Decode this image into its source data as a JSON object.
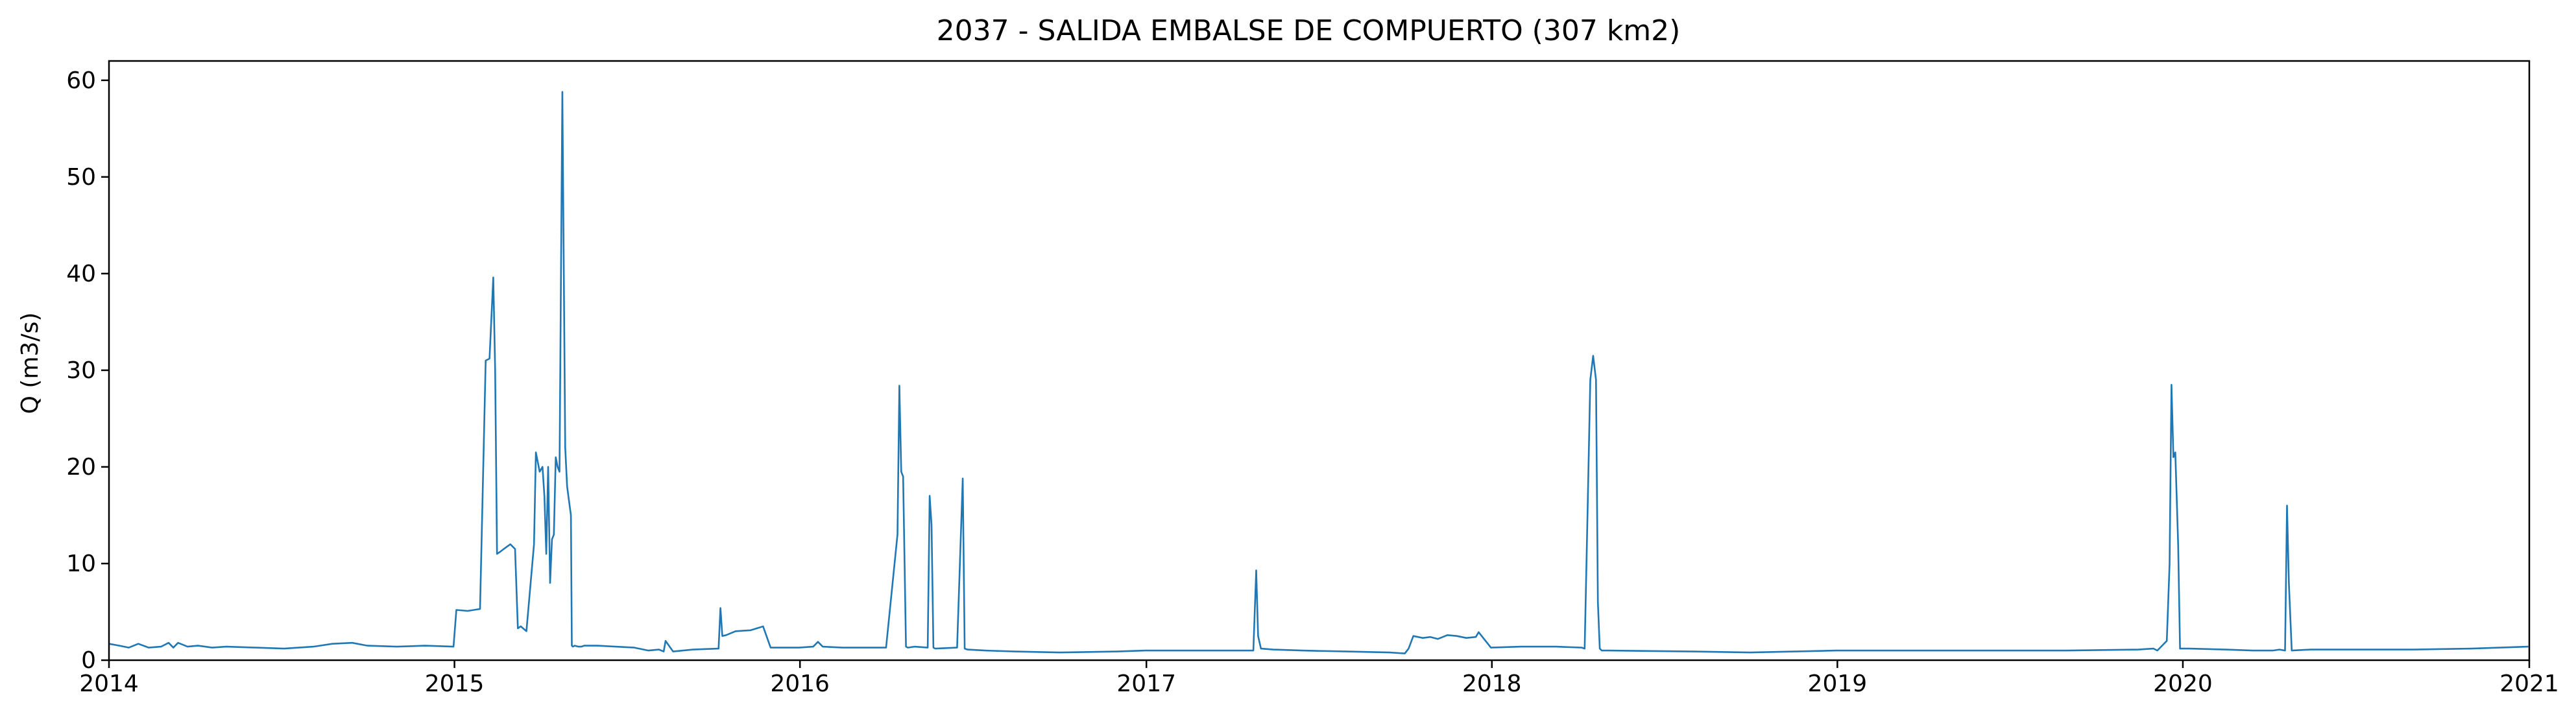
{
  "chart_data": {
    "type": "line",
    "title": "2037 - SALIDA EMBALSE DE COMPUERTO (307 km2)",
    "xlabel": "",
    "ylabel": "Q (m3/s)",
    "xlim": [
      "2014-01-01",
      "2021-01-01"
    ],
    "ylim": [
      0,
      62
    ],
    "x_ticks": [
      "2014",
      "2015",
      "2016",
      "2017",
      "2018",
      "2019",
      "2020",
      "2021"
    ],
    "y_ticks": [
      0,
      10,
      20,
      30,
      40,
      50,
      60
    ],
    "grid": false,
    "legend": "none",
    "line_color": "#1f77b4",
    "series": [
      {
        "x": [
          "2014-01-01",
          "2014-01-12",
          "2014-01-22",
          "2014-02-01",
          "2014-02-12",
          "2014-02-25",
          "2014-03-05",
          "2014-03-10",
          "2014-03-15",
          "2014-03-25",
          "2014-04-05",
          "2014-04-20",
          "2014-05-05",
          "2014-06-05",
          "2014-07-05",
          "2014-08-05",
          "2014-08-25",
          "2014-09-15",
          "2014-10-01",
          "2014-11-01",
          "2014-12-01",
          "2014-12-31",
          "2015-01-03",
          "2015-01-15",
          "2015-01-28",
          "2015-02-03",
          "2015-02-07",
          "2015-02-11",
          "2015-02-13",
          "2015-02-15",
          "2015-02-18",
          "2015-02-22",
          "2015-03-01",
          "2015-03-06",
          "2015-03-09",
          "2015-03-12",
          "2015-03-18",
          "2015-03-26",
          "2015-03-28",
          "2015-04-01",
          "2015-04-04",
          "2015-04-06",
          "2015-04-08",
          "2015-04-10",
          "2015-04-12",
          "2015-04-14",
          "2015-04-16",
          "2015-04-18",
          "2015-04-20",
          "2015-04-22",
          "2015-04-25",
          "2015-04-28",
          "2015-04-30",
          "2015-05-02",
          "2015-05-04",
          "2015-05-05",
          "2015-05-06",
          "2015-05-08",
          "2015-05-12",
          "2015-05-15",
          "2015-05-18",
          "2015-06-01",
          "2015-06-20",
          "2015-07-10",
          "2015-07-25",
          "2015-08-05",
          "2015-08-10",
          "2015-08-12",
          "2015-08-20",
          "2015-09-10",
          "2015-10-07",
          "2015-10-09",
          "2015-10-11",
          "2015-10-15",
          "2015-10-25",
          "2015-11-10",
          "2015-11-20",
          "2015-11-23",
          "2015-12-01",
          "2015-12-31",
          "2016-01-15",
          "2016-01-20",
          "2016-01-25",
          "2016-02-15",
          "2016-03-10",
          "2016-04-01",
          "2016-04-13",
          "2016-04-15",
          "2016-04-17",
          "2016-04-19",
          "2016-04-22",
          "2016-04-24",
          "2016-05-01",
          "2016-05-15",
          "2016-05-17",
          "2016-05-19",
          "2016-05-21",
          "2016-05-23",
          "2016-06-15",
          "2016-06-21",
          "2016-06-23",
          "2016-06-26",
          "2016-07-15",
          "2016-08-15",
          "2016-10-01",
          "2016-12-01",
          "2016-12-31",
          "2017-02-15",
          "2017-04-01",
          "2017-04-24",
          "2017-04-27",
          "2017-04-29",
          "2017-05-02",
          "2017-05-15",
          "2017-06-15",
          "2017-08-01",
          "2017-09-15",
          "2017-10-01",
          "2017-10-05",
          "2017-10-10",
          "2017-10-20",
          "2017-10-28",
          "2017-11-05",
          "2017-11-15",
          "2017-11-25",
          "2017-12-05",
          "2017-12-15",
          "2017-12-18",
          "2017-12-31",
          "2018-02-01",
          "2018-03-10",
          "2018-04-06",
          "2018-04-09",
          "2018-04-12",
          "2018-04-15",
          "2018-04-18",
          "2018-04-21",
          "2018-04-23",
          "2018-04-25",
          "2018-04-27",
          "2018-05-05",
          "2018-08-01",
          "2018-10-01",
          "2018-12-31",
          "2019-03-01",
          "2019-06-01",
          "2019-09-01",
          "2019-11-15",
          "2019-12-01",
          "2019-12-05",
          "2019-12-15",
          "2019-12-18",
          "2019-12-20",
          "2019-12-22",
          "2019-12-24",
          "2019-12-27",
          "2019-12-29",
          "2020-01-04",
          "2020-01-08",
          "2020-02-15",
          "2020-03-15",
          "2020-04-05",
          "2020-04-12",
          "2020-04-18",
          "2020-04-20",
          "2020-04-22",
          "2020-04-25",
          "2020-05-15",
          "2020-07-01",
          "2020-09-01",
          "2020-11-01",
          "2020-12-31"
        ],
        "y": [
          1.7,
          1.5,
          1.3,
          1.7,
          1.3,
          1.4,
          1.8,
          1.3,
          1.8,
          1.4,
          1.5,
          1.3,
          1.4,
          1.3,
          1.2,
          1.4,
          1.7,
          1.8,
          1.5,
          1.4,
          1.5,
          1.4,
          5.2,
          5.1,
          5.3,
          31.0,
          31.2,
          39.6,
          30.0,
          11.0,
          11.2,
          11.5,
          12.0,
          11.5,
          3.3,
          3.5,
          3.0,
          12.0,
          21.5,
          19.5,
          20.0,
          17.0,
          11.0,
          20.0,
          8.0,
          12.5,
          13.0,
          21.0,
          20.0,
          19.5,
          58.8,
          22.0,
          18.0,
          16.5,
          15.0,
          1.5,
          1.4,
          1.5,
          1.4,
          1.4,
          1.5,
          1.5,
          1.4,
          1.3,
          1.0,
          1.1,
          0.9,
          2.0,
          0.9,
          1.1,
          1.2,
          5.4,
          2.5,
          2.6,
          3.0,
          3.1,
          3.4,
          3.5,
          1.3,
          1.3,
          1.4,
          1.9,
          1.4,
          1.3,
          1.3,
          1.3,
          13.0,
          28.4,
          19.5,
          19.0,
          1.4,
          1.3,
          1.4,
          1.3,
          17.0,
          14.0,
          1.3,
          1.2,
          1.3,
          18.8,
          1.2,
          1.1,
          1.0,
          0.9,
          0.8,
          0.9,
          1.0,
          1.0,
          1.0,
          1.0,
          9.3,
          2.5,
          1.2,
          1.1,
          1.0,
          0.9,
          0.8,
          0.7,
          1.2,
          2.5,
          2.3,
          2.4,
          2.2,
          2.6,
          2.5,
          2.3,
          2.4,
          2.9,
          1.3,
          1.4,
          1.4,
          1.3,
          1.2,
          15.0,
          29.0,
          31.5,
          29.0,
          6.0,
          1.2,
          1.0,
          1.0,
          0.9,
          0.8,
          1.0,
          1.0,
          1.0,
          1.0,
          1.1,
          1.2,
          1.0,
          2.0,
          10.0,
          28.5,
          21.0,
          21.5,
          12.0,
          1.2,
          1.2,
          1.2,
          1.1,
          1.0,
          1.0,
          1.1,
          1.0,
          16.0,
          8.0,
          1.0,
          1.1,
          1.1,
          1.1,
          1.2,
          1.4
        ]
      }
    ]
  }
}
